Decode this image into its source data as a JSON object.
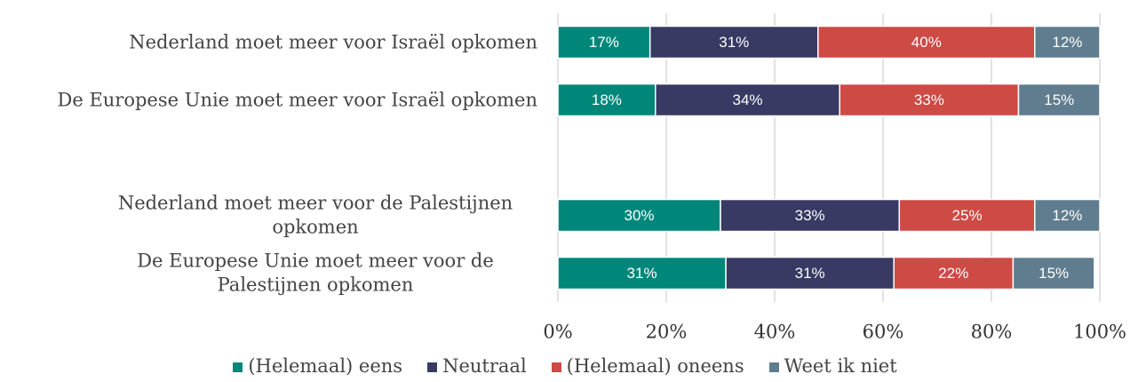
{
  "chart_data": {
    "type": "stacked_barh",
    "categories": [
      "Nederland moet meer voor Israël opkomen",
      "De Europese Unie moet meer voor Israël opkomen",
      null,
      "Nederland moet meer voor de Palestijnen opkomen",
      "De Europese Unie moet meer voor de Palestijnen opkomen"
    ],
    "series": [
      {
        "name": "(Helemaal) eens",
        "color": "#00877a",
        "values": [
          17,
          18,
          null,
          30,
          31
        ],
        "value_labels": [
          "17%",
          "18%",
          null,
          "30%",
          "31%"
        ]
      },
      {
        "name": "Neutraal",
        "color": "#383a64",
        "values": [
          31,
          34,
          null,
          33,
          31
        ],
        "value_labels": [
          "31%",
          "34%",
          null,
          "33%",
          "31%"
        ]
      },
      {
        "name": "(Helemaal) oneens",
        "color": "#cd4a45",
        "values": [
          40,
          33,
          null,
          25,
          22
        ],
        "value_labels": [
          "40%",
          "33%",
          null,
          "25%",
          "22%"
        ]
      },
      {
        "name": "Weet ik niet",
        "color": "#5f7d8e",
        "values": [
          12,
          15,
          null,
          12,
          15
        ],
        "value_labels": [
          "12%",
          "15%",
          null,
          "12%",
          "15%"
        ]
      }
    ],
    "xlim": [
      0,
      100
    ],
    "xticks": [
      {
        "value": 0,
        "label": "0%"
      },
      {
        "value": 20,
        "label": "20%"
      },
      {
        "value": 40,
        "label": "40%"
      },
      {
        "value": 60,
        "label": "60%"
      },
      {
        "value": 80,
        "label": "80%"
      },
      {
        "value": 100,
        "label": "100%"
      }
    ],
    "grid": true,
    "legend": "bottom"
  }
}
